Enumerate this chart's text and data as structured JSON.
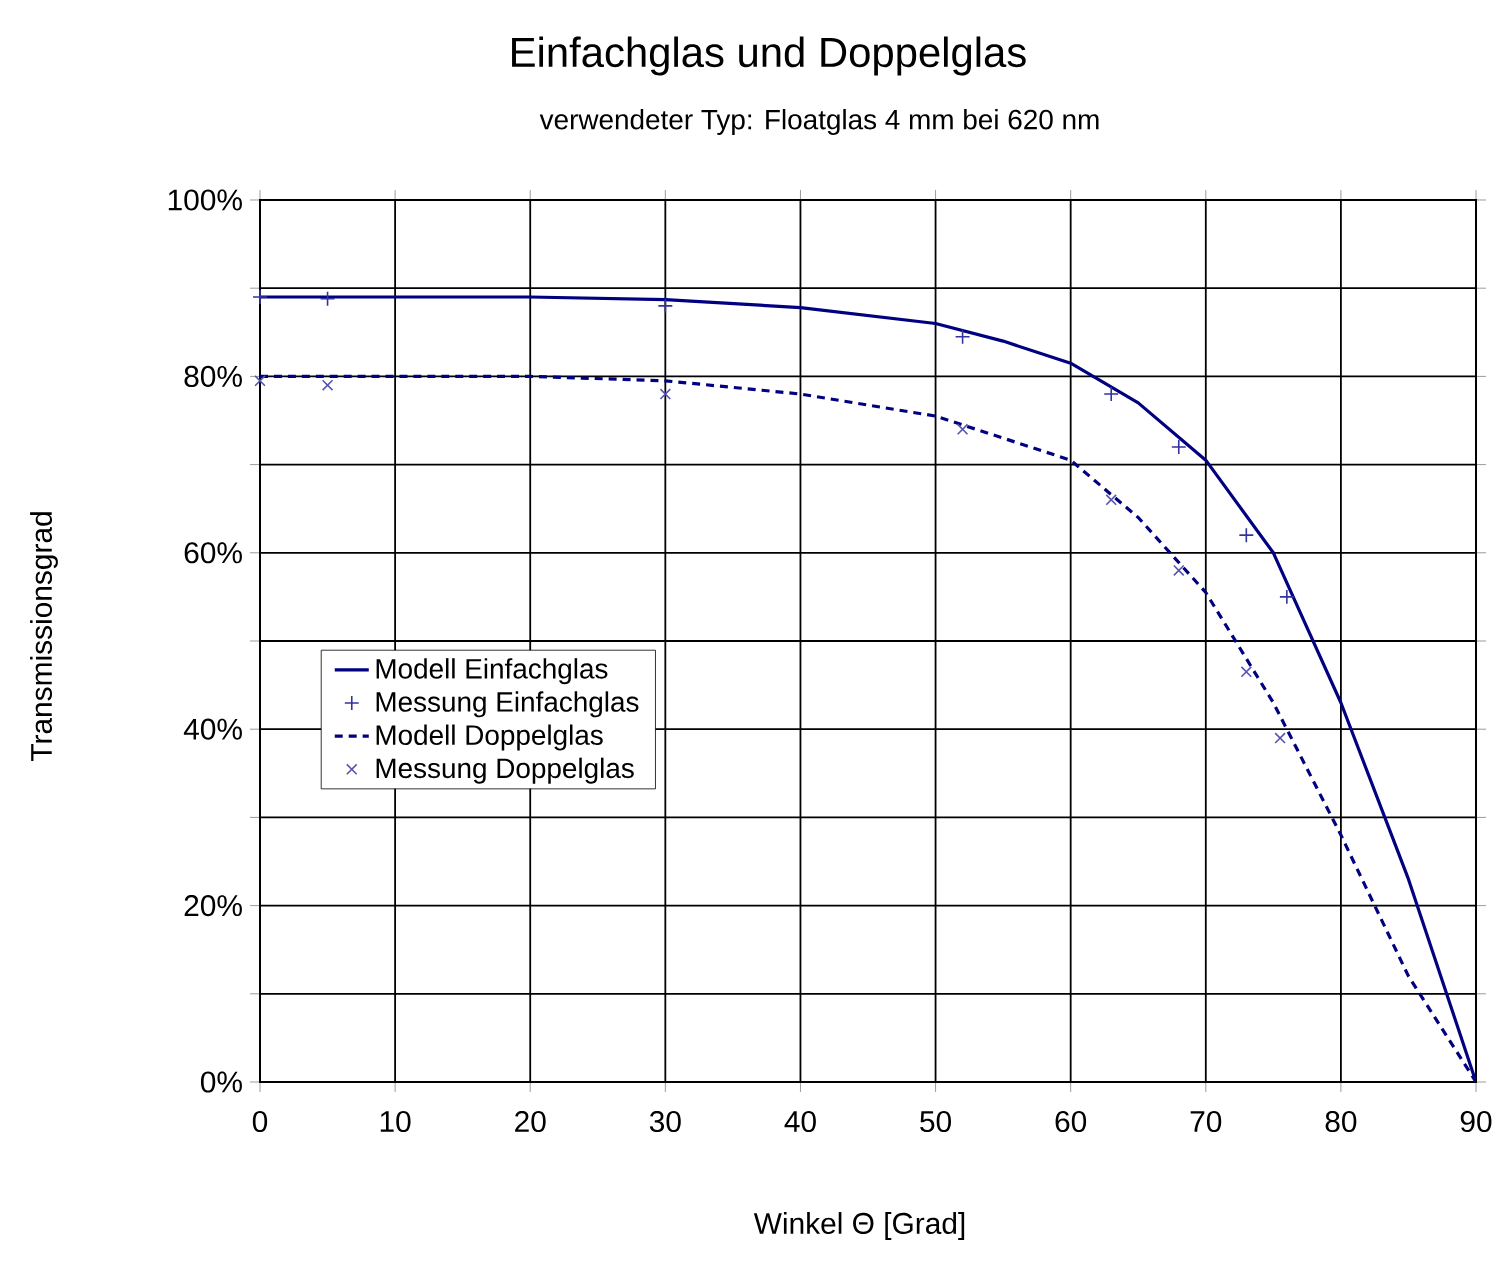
{
  "chart_data": {
    "type": "line",
    "title": "Einfachglas und Doppelglas",
    "subtitle": "verwendeter Typ: Floatglas 4 mm bei 620 nm",
    "xlabel": "Winkel Θ [Grad]",
    "ylabel": "Transmissionsgrad",
    "xlim": [
      0,
      90
    ],
    "xticks": [
      0,
      10,
      20,
      30,
      40,
      50,
      60,
      70,
      80,
      90
    ],
    "ylim": [
      0,
      100
    ],
    "yticks": [
      {
        "value": 0,
        "label": "0%"
      },
      {
        "value": 10,
        "label": null
      },
      {
        "value": 20,
        "label": "20%"
      },
      {
        "value": 30,
        "label": null
      },
      {
        "value": 40,
        "label": "40%"
      },
      {
        "value": 50,
        "label": null
      },
      {
        "value": 60,
        "label": "60%"
      },
      {
        "value": 70,
        "label": null
      },
      {
        "value": 80,
        "label": "80%"
      },
      {
        "value": 90,
        "label": null
      },
      {
        "value": 100,
        "label": "100%"
      }
    ],
    "grid": true,
    "legend": "left",
    "series": [
      {
        "name": "Modell Einfachglas",
        "color": "#000080",
        "line_style": "solid",
        "marker": "none",
        "x": [
          0,
          10,
          20,
          30,
          40,
          50,
          55,
          60,
          65,
          70,
          75,
          80,
          85,
          90
        ],
        "values": [
          89,
          89,
          89,
          88.7,
          87.8,
          86,
          84,
          81.5,
          77,
          70.5,
          60,
          43,
          23,
          0
        ]
      },
      {
        "name": "Messung Einfachglas",
        "type": "scatter",
        "color": "#3333a0",
        "marker": "plus",
        "x": [
          0,
          5,
          30,
          52,
          63,
          68,
          73,
          76
        ],
        "values": [
          89,
          88.8,
          88,
          84.5,
          78,
          72,
          62,
          55
        ]
      },
      {
        "name": "Modell Doppelglas",
        "color": "#000080",
        "line_style": "dashed",
        "marker": "none",
        "x": [
          0,
          10,
          20,
          30,
          40,
          50,
          55,
          60,
          65,
          70,
          75,
          80,
          85,
          90
        ],
        "values": [
          80,
          80,
          80,
          79.5,
          78,
          75.5,
          73,
          70.5,
          64,
          55.5,
          43,
          28,
          12,
          0
        ]
      },
      {
        "name": "Messung Doppelglas",
        "type": "scatter",
        "color": "#5555b0",
        "marker": "cross",
        "x": [
          0,
          5,
          30,
          52,
          63,
          68,
          73,
          75.5
        ],
        "values": [
          79.5,
          79,
          78,
          74,
          66,
          58,
          46.5,
          39
        ]
      }
    ]
  }
}
